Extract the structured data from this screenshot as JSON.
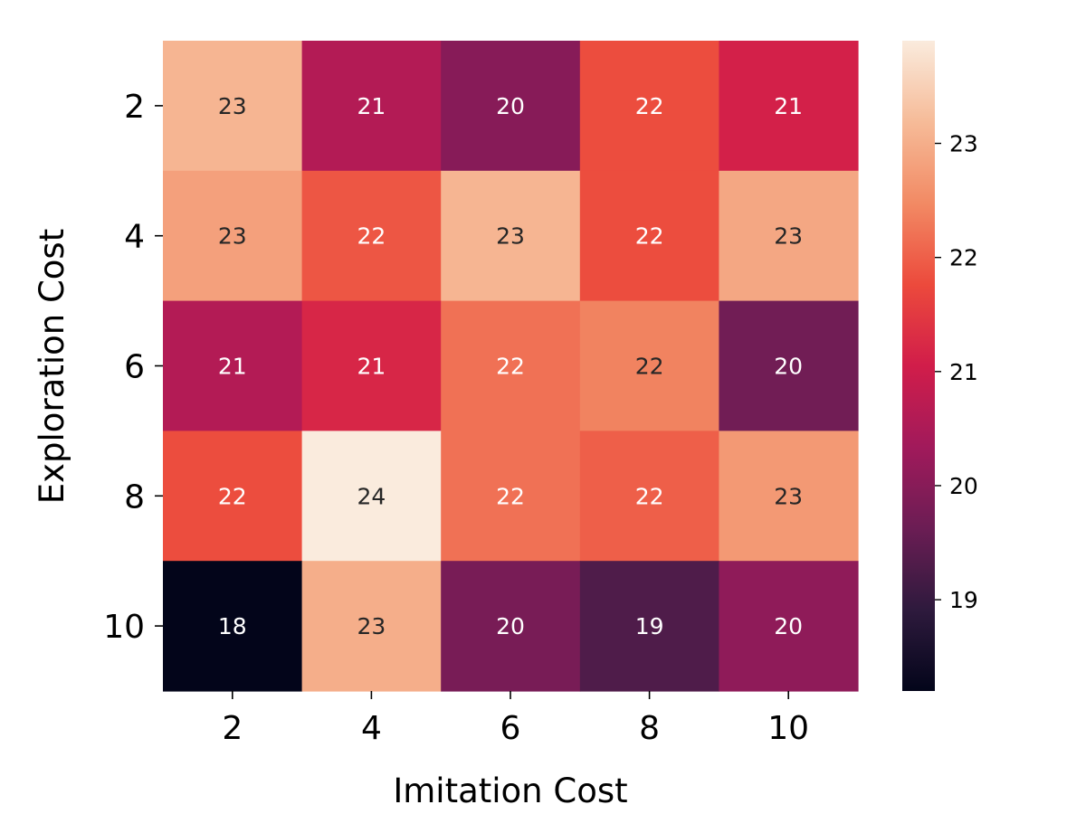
{
  "chart_data": {
    "type": "heatmap",
    "title": "",
    "xlabel": "Imitation Cost",
    "ylabel": "Exploration Cost",
    "x_categories": [
      "2",
      "4",
      "6",
      "8",
      "10"
    ],
    "y_categories": [
      "2",
      "4",
      "6",
      "8",
      "10"
    ],
    "values": [
      [
        23.1,
        20.6,
        20.0,
        21.8,
        21.1
      ],
      [
        22.8,
        21.9,
        23.1,
        21.8,
        22.9
      ],
      [
        20.6,
        21.2,
        22.2,
        22.4,
        19.7
      ],
      [
        21.8,
        23.9,
        22.2,
        22.0,
        22.7
      ],
      [
        18.2,
        23.0,
        19.8,
        19.3,
        20.1
      ]
    ],
    "cell_labels": [
      [
        "23",
        "21",
        "20",
        "22",
        "21"
      ],
      [
        "23",
        "22",
        "23",
        "22",
        "23"
      ],
      [
        "21",
        "21",
        "22",
        "22",
        "20"
      ],
      [
        "22",
        "24",
        "22",
        "22",
        "23"
      ],
      [
        "18",
        "23",
        "20",
        "19",
        "20"
      ]
    ],
    "colorbar": {
      "range": [
        18.2,
        23.9
      ],
      "ticks": [
        19,
        20,
        21,
        22,
        23
      ],
      "tick_labels": [
        "19",
        "20",
        "21",
        "22",
        "23"
      ]
    },
    "colormap": [
      "#03051a",
      "#2e1a3d",
      "#6b1d54",
      "#a11a5b",
      "#d11d4a",
      "#ec4a3c",
      "#f28a64",
      "#f6bb98",
      "#faebdd"
    ],
    "grid": false,
    "legend": "colorbar-right"
  }
}
